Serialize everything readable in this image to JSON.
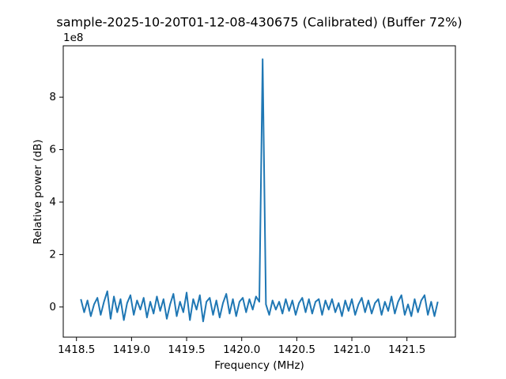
{
  "chart_data": {
    "type": "line",
    "title": "sample-2025-10-20T01-12-08-430675 (Calibrated) (Buffer 72%)",
    "x_label": "Frequency (MHz)",
    "y_label": "Relative power (dB)",
    "y_offset_label": "1e8",
    "x": [
      1418.54,
      1418.57,
      1418.6,
      1418.63,
      1418.66,
      1418.69,
      1418.72,
      1418.75,
      1418.78,
      1418.81,
      1418.84,
      1418.87,
      1418.9,
      1418.93,
      1418.96,
      1418.99,
      1419.02,
      1419.05,
      1419.08,
      1419.11,
      1419.14,
      1419.17,
      1419.2,
      1419.23,
      1419.26,
      1419.29,
      1419.32,
      1419.35,
      1419.38,
      1419.41,
      1419.44,
      1419.47,
      1419.5,
      1419.53,
      1419.56,
      1419.59,
      1419.62,
      1419.65,
      1419.68,
      1419.71,
      1419.74,
      1419.77,
      1419.8,
      1419.83,
      1419.86,
      1419.89,
      1419.92,
      1419.95,
      1419.98,
      1420.01,
      1420.04,
      1420.07,
      1420.1,
      1420.13,
      1420.16,
      1420.19,
      1420.22,
      1420.25,
      1420.28,
      1420.31,
      1420.34,
      1420.37,
      1420.4,
      1420.43,
      1420.46,
      1420.49,
      1420.52,
      1420.55,
      1420.58,
      1420.61,
      1420.64,
      1420.67,
      1420.7,
      1420.73,
      1420.76,
      1420.79,
      1420.82,
      1420.85,
      1420.88,
      1420.91,
      1420.94,
      1420.97,
      1421.0,
      1421.03,
      1421.06,
      1421.09,
      1421.12,
      1421.15,
      1421.18,
      1421.21,
      1421.24,
      1421.27,
      1421.3,
      1421.33,
      1421.36,
      1421.39,
      1421.42,
      1421.45,
      1421.48,
      1421.51,
      1421.54,
      1421.57,
      1421.6,
      1421.63,
      1421.66,
      1421.69,
      1421.72,
      1421.75,
      1421.78
    ],
    "series": [
      {
        "color": "#1f77b4",
        "values": [
          0.3,
          -0.2,
          0.25,
          -0.35,
          0.1,
          0.35,
          -0.3,
          0.2,
          0.6,
          -0.45,
          0.4,
          -0.2,
          0.3,
          -0.5,
          0.15,
          0.45,
          -0.3,
          0.25,
          -0.1,
          0.35,
          -0.4,
          0.2,
          -0.25,
          0.4,
          -0.15,
          0.3,
          -0.45,
          0.1,
          0.5,
          -0.35,
          0.2,
          -0.2,
          0.55,
          -0.5,
          0.3,
          -0.1,
          0.45,
          -0.55,
          0.2,
          0.35,
          -0.3,
          0.25,
          -0.4,
          0.15,
          0.5,
          -0.25,
          0.3,
          -0.35,
          0.2,
          0.35,
          -0.2,
          0.3,
          -0.1,
          0.4,
          0.2,
          9.45,
          0.1,
          -0.3,
          0.25,
          -0.1,
          0.2,
          -0.25,
          0.3,
          -0.15,
          0.25,
          -0.3,
          0.15,
          0.35,
          -0.2,
          0.3,
          -0.25,
          0.2,
          0.3,
          -0.3,
          0.25,
          -0.1,
          0.3,
          -0.2,
          0.15,
          -0.35,
          0.25,
          -0.15,
          0.3,
          -0.3,
          0.1,
          0.35,
          -0.2,
          0.25,
          -0.25,
          0.15,
          0.3,
          -0.3,
          0.2,
          -0.15,
          0.4,
          -0.25,
          0.2,
          0.45,
          -0.3,
          0.1,
          -0.35,
          0.3,
          -0.2,
          0.25,
          0.45,
          -0.3,
          0.2,
          -0.35,
          0.2
        ]
      }
    ],
    "xlim": [
      1418.38,
      1421.94
    ],
    "ylim": [
      -1.15,
      9.96
    ],
    "xticks": [
      1418.5,
      {
        "value": 1419,
        "label": "1419.0"
      },
      1419.5,
      {
        "value": 1420,
        "label": "1420.0"
      },
      1420.5,
      {
        "value": 1421,
        "label": "1421.0"
      },
      1421.5
    ],
    "yticks": [
      0,
      2,
      4,
      6,
      8
    ],
    "grid": false
  }
}
